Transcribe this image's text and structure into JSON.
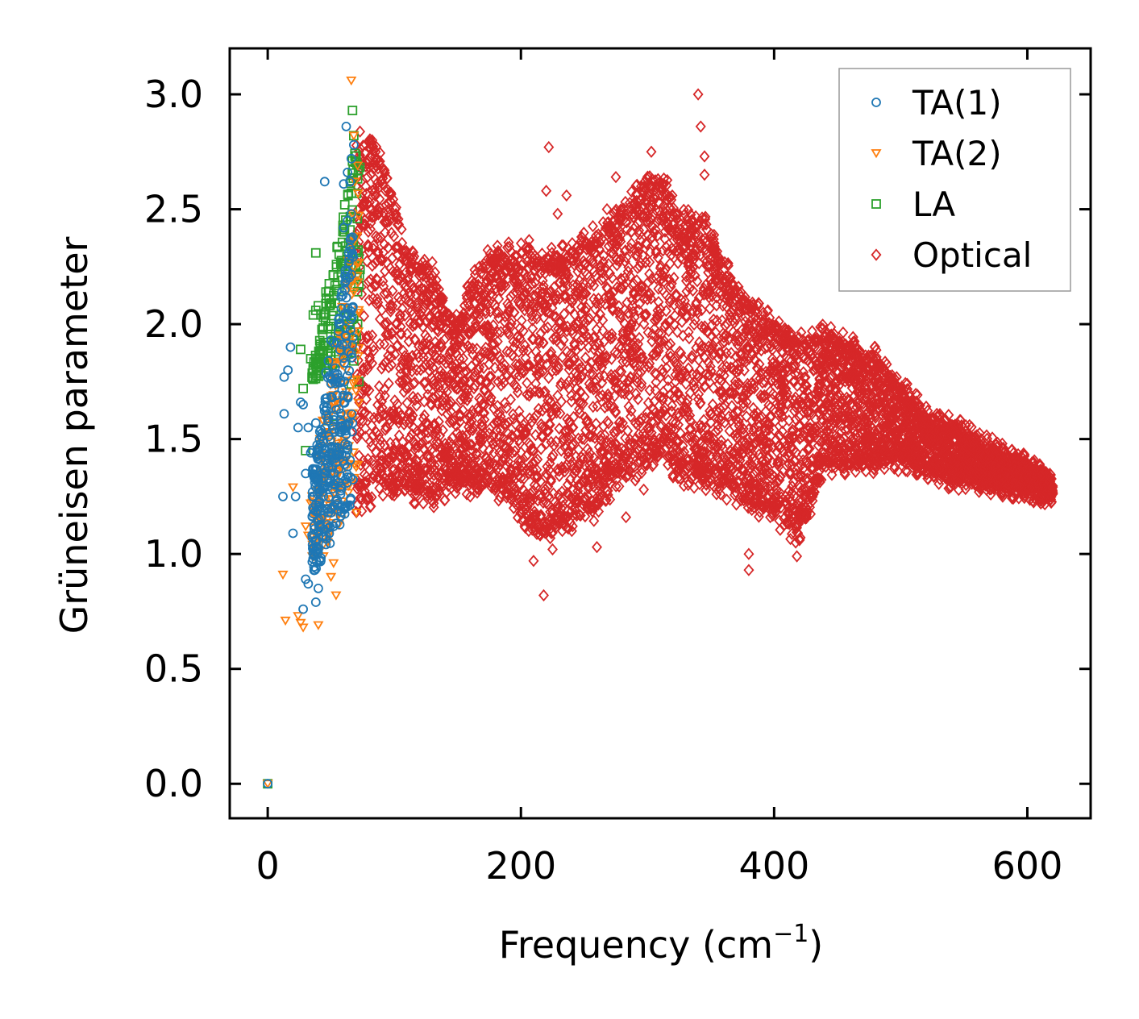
{
  "chart_data": {
    "type": "scatter",
    "title": "",
    "xlabel_main": "Frequency (cm",
    "xlabel_sup": "−1",
    "xlabel_close": ")",
    "ylabel": "Grüneisen parameter",
    "xlim": [
      -30,
      650
    ],
    "ylim": [
      -0.15,
      3.2
    ],
    "x_ticks": [
      0,
      200,
      400,
      600
    ],
    "x_tick_labels": [
      "0",
      "200",
      "400",
      "600"
    ],
    "y_ticks": [
      0.0,
      0.5,
      1.0,
      1.5,
      2.0,
      2.5,
      3.0
    ],
    "y_tick_labels": [
      "0.0",
      "0.5",
      "1.0",
      "1.5",
      "2.0",
      "2.5",
      "3.0"
    ],
    "legend_position": "top-right",
    "series": [
      {
        "name": "TA(1)",
        "color": "#1f77b4",
        "marker": "circle",
        "points": [
          [
            0,
            0
          ],
          [
            12,
            1.25
          ],
          [
            13,
            1.61
          ],
          [
            13,
            1.77
          ],
          [
            16,
            1.8
          ],
          [
            18,
            1.9
          ],
          [
            20,
            1.09
          ],
          [
            22,
            1.25
          ],
          [
            24,
            1.55
          ],
          [
            26,
            1.66
          ],
          [
            28,
            1.65
          ],
          [
            28,
            0.76
          ],
          [
            30,
            1.35
          ],
          [
            30,
            0.89
          ],
          [
            32,
            1.55
          ],
          [
            32,
            0.87
          ],
          [
            34,
            1.44
          ],
          [
            35,
            1.45
          ],
          [
            36,
            1.02
          ],
          [
            38,
            1.57
          ],
          [
            38,
            0.79
          ],
          [
            40,
            1.46
          ],
          [
            40,
            0.85
          ],
          [
            42,
            1.54
          ],
          [
            44,
            1.25
          ],
          [
            45,
            2.62
          ],
          [
            46,
            1.79
          ],
          [
            46,
            1.36
          ],
          [
            48,
            1.84
          ],
          [
            48,
            1.18
          ],
          [
            50,
            1.93
          ],
          [
            50,
            1.32
          ],
          [
            52,
            1.12
          ],
          [
            54,
            1.75
          ],
          [
            55,
            1.43
          ],
          [
            56,
            2.02
          ],
          [
            56,
            1.37
          ],
          [
            58,
            2.12
          ],
          [
            58,
            1.53
          ],
          [
            60,
            2.61
          ],
          [
            60,
            2.42
          ],
          [
            60,
            1.66
          ],
          [
            61,
            2.15
          ],
          [
            62,
            2.86
          ],
          [
            62,
            2.2
          ],
          [
            62,
            1.52
          ],
          [
            63,
            2.66
          ],
          [
            63,
            2.45
          ],
          [
            64,
            2.31
          ],
          [
            64,
            1.57
          ],
          [
            65,
            2.62
          ],
          [
            65,
            2.33
          ],
          [
            66,
            2.72
          ],
          [
            66,
            2.48
          ],
          [
            67,
            2.07
          ],
          [
            68,
            2.78
          ]
        ],
        "x_range": [
          0,
          68
        ]
      },
      {
        "name": "TA(2)",
        "color": "#ff7f0e",
        "marker": "triangle_down",
        "points": [
          [
            0,
            0
          ],
          [
            12,
            0.91
          ],
          [
            14,
            0.71
          ],
          [
            20,
            1.29
          ],
          [
            24,
            0.73
          ],
          [
            26,
            0.7
          ],
          [
            28,
            0.68
          ],
          [
            30,
            1.12
          ],
          [
            32,
            1.08
          ],
          [
            34,
            1.22
          ],
          [
            40,
            0.69
          ],
          [
            44,
            0.99
          ],
          [
            46,
            1.12
          ],
          [
            48,
            1.2
          ],
          [
            50,
            0.9
          ],
          [
            52,
            0.96
          ],
          [
            54,
            0.82
          ],
          [
            56,
            1.36
          ],
          [
            58,
            1.15
          ],
          [
            60,
            1.3
          ],
          [
            62,
            1.41
          ],
          [
            64,
            1.61
          ],
          [
            64,
            1.47
          ],
          [
            65,
            1.92
          ],
          [
            66,
            2.21
          ],
          [
            66,
            3.06
          ],
          [
            67,
            2.48
          ],
          [
            68,
            2.82
          ],
          [
            68,
            2.14
          ],
          [
            69,
            2.62
          ],
          [
            70,
            1.18
          ],
          [
            70,
            1.76
          ],
          [
            71,
            2.69
          ],
          [
            72,
            2.05
          ]
        ],
        "x_range": [
          0,
          72
        ]
      },
      {
        "name": "LA",
        "color": "#2ca02c",
        "marker": "square",
        "points": [
          [
            0,
            0
          ],
          [
            38,
            2.31
          ],
          [
            26,
            1.89
          ],
          [
            28,
            1.72
          ],
          [
            30,
            1.45
          ],
          [
            34,
            1.85
          ],
          [
            36,
            2.04
          ],
          [
            36,
            1.76
          ],
          [
            38,
            2.06
          ],
          [
            40,
            2.08
          ],
          [
            42,
            2.04
          ],
          [
            44,
            2.03
          ],
          [
            45,
            2.04
          ],
          [
            46,
            1.92
          ],
          [
            46,
            2.14
          ],
          [
            48,
            1.58
          ],
          [
            50,
            1.86
          ],
          [
            52,
            1.6
          ],
          [
            54,
            1.88
          ],
          [
            56,
            1.95
          ],
          [
            58,
            2.0
          ],
          [
            60,
            2.03
          ],
          [
            62,
            1.44
          ],
          [
            63,
            2.18
          ],
          [
            64,
            2.35
          ],
          [
            65,
            2.41
          ],
          [
            66,
            1.74
          ],
          [
            66,
            2.57
          ],
          [
            67,
            2.93
          ],
          [
            67,
            2.71
          ],
          [
            68,
            2.82
          ],
          [
            68,
            1.84
          ],
          [
            69,
            2.25
          ],
          [
            70,
            1.95
          ],
          [
            71,
            2.0
          ],
          [
            72,
            2.17
          ],
          [
            72,
            1.75
          ]
        ],
        "x_range": [
          0,
          73
        ]
      },
      {
        "name": "Optical",
        "color": "#d62728",
        "marker": "diamond",
        "x_range": [
          70,
          620
        ],
        "band_x": [
          70,
          90,
          110,
          130,
          150,
          165,
          185,
          205,
          220,
          240,
          260,
          280,
          300,
          310,
          325,
          345,
          365,
          385,
          400,
          420,
          440,
          460,
          480,
          500,
          520,
          540,
          560,
          580,
          600,
          620
        ],
        "band_upper": [
          2.8,
          2.72,
          2.3,
          2.2,
          1.98,
          2.25,
          2.3,
          2.32,
          2.28,
          2.3,
          2.4,
          2.47,
          2.62,
          2.65,
          2.45,
          2.45,
          2.2,
          2.05,
          2.0,
          1.92,
          1.95,
          1.9,
          1.85,
          1.72,
          1.6,
          1.55,
          1.5,
          1.43,
          1.38,
          1.3
        ],
        "band_lower": [
          1.2,
          1.3,
          1.28,
          1.25,
          1.32,
          1.3,
          1.28,
          1.12,
          1.1,
          1.15,
          1.2,
          1.33,
          1.4,
          1.45,
          1.35,
          1.33,
          1.28,
          1.22,
          1.18,
          1.08,
          1.4,
          1.38,
          1.4,
          1.42,
          1.38,
          1.33,
          1.32,
          1.3,
          1.28,
          1.26
        ],
        "outliers": [
          [
            340,
            3.0
          ],
          [
            342,
            2.86
          ],
          [
            345,
            2.73
          ],
          [
            345,
            2.65
          ],
          [
            303,
            2.75
          ],
          [
            222,
            2.77
          ],
          [
            220,
            2.58
          ],
          [
            275,
            2.64
          ],
          [
            236,
            2.56
          ],
          [
            182,
            2.31
          ],
          [
            200,
            2.31
          ],
          [
            229,
            2.48
          ],
          [
            268,
            2.5
          ],
          [
            287,
            2.4
          ],
          [
            130,
            2.27
          ],
          [
            218,
            0.82
          ],
          [
            210,
            0.97
          ],
          [
            225,
            1.02
          ],
          [
            260,
            1.03
          ],
          [
            380,
            1.0
          ],
          [
            380,
            0.93
          ],
          [
            418,
            0.99
          ],
          [
            417,
            1.05
          ],
          [
            283,
            1.16
          ],
          [
            297,
            1.28
          ],
          [
            350,
            1.33
          ],
          [
            397,
            1.16
          ],
          [
            420,
            1.06
          ],
          [
            160,
            1.25
          ],
          [
            498,
            1.36
          ],
          [
            117,
            1.26
          ]
        ]
      }
    ]
  }
}
